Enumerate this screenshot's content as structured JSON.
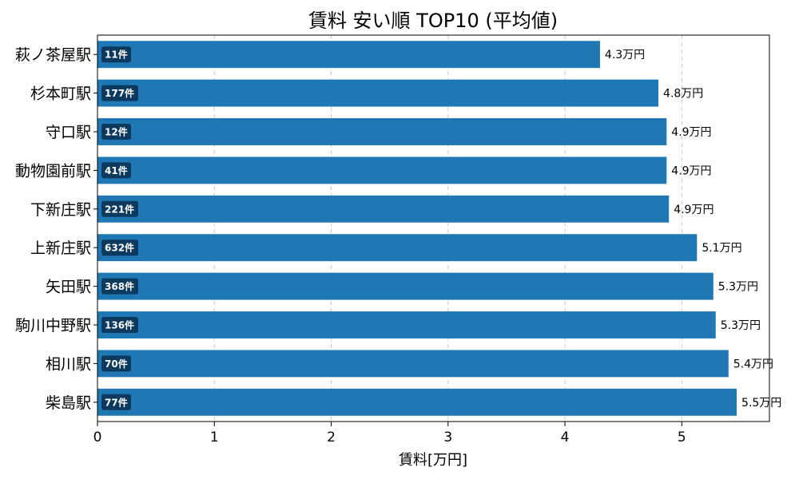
{
  "chart_data": {
    "type": "bar",
    "orientation": "horizontal",
    "title": "賃料 安い順 TOP10 (平均値)",
    "xlabel": "賃料[万円]",
    "ylabel": "",
    "xlim": [
      0,
      5.75
    ],
    "xticks": [
      "0",
      "1",
      "2",
      "3",
      "4",
      "5"
    ],
    "grid": "x-dashed",
    "bar_color": "#1f77b4",
    "badge_color": "#0b3a5e",
    "categories": [
      "萩ノ茶屋駅",
      "杉本町駅",
      "守口駅",
      "動物園前駅",
      "下新庄駅",
      "上新庄駅",
      "矢田駅",
      "駒川中野駅",
      "相川駅",
      "柴島駅"
    ],
    "values": [
      4.3,
      4.8,
      4.87,
      4.87,
      4.89,
      5.13,
      5.27,
      5.29,
      5.4,
      5.47
    ],
    "value_labels": [
      "4.3万円",
      "4.8万円",
      "4.9万円",
      "4.9万円",
      "4.9万円",
      "5.1万円",
      "5.3万円",
      "5.3万円",
      "5.4万円",
      "5.5万円"
    ],
    "counts": [
      "11件",
      "177件",
      "12件",
      "41件",
      "221件",
      "632件",
      "368件",
      "136件",
      "70件",
      "77件"
    ]
  }
}
